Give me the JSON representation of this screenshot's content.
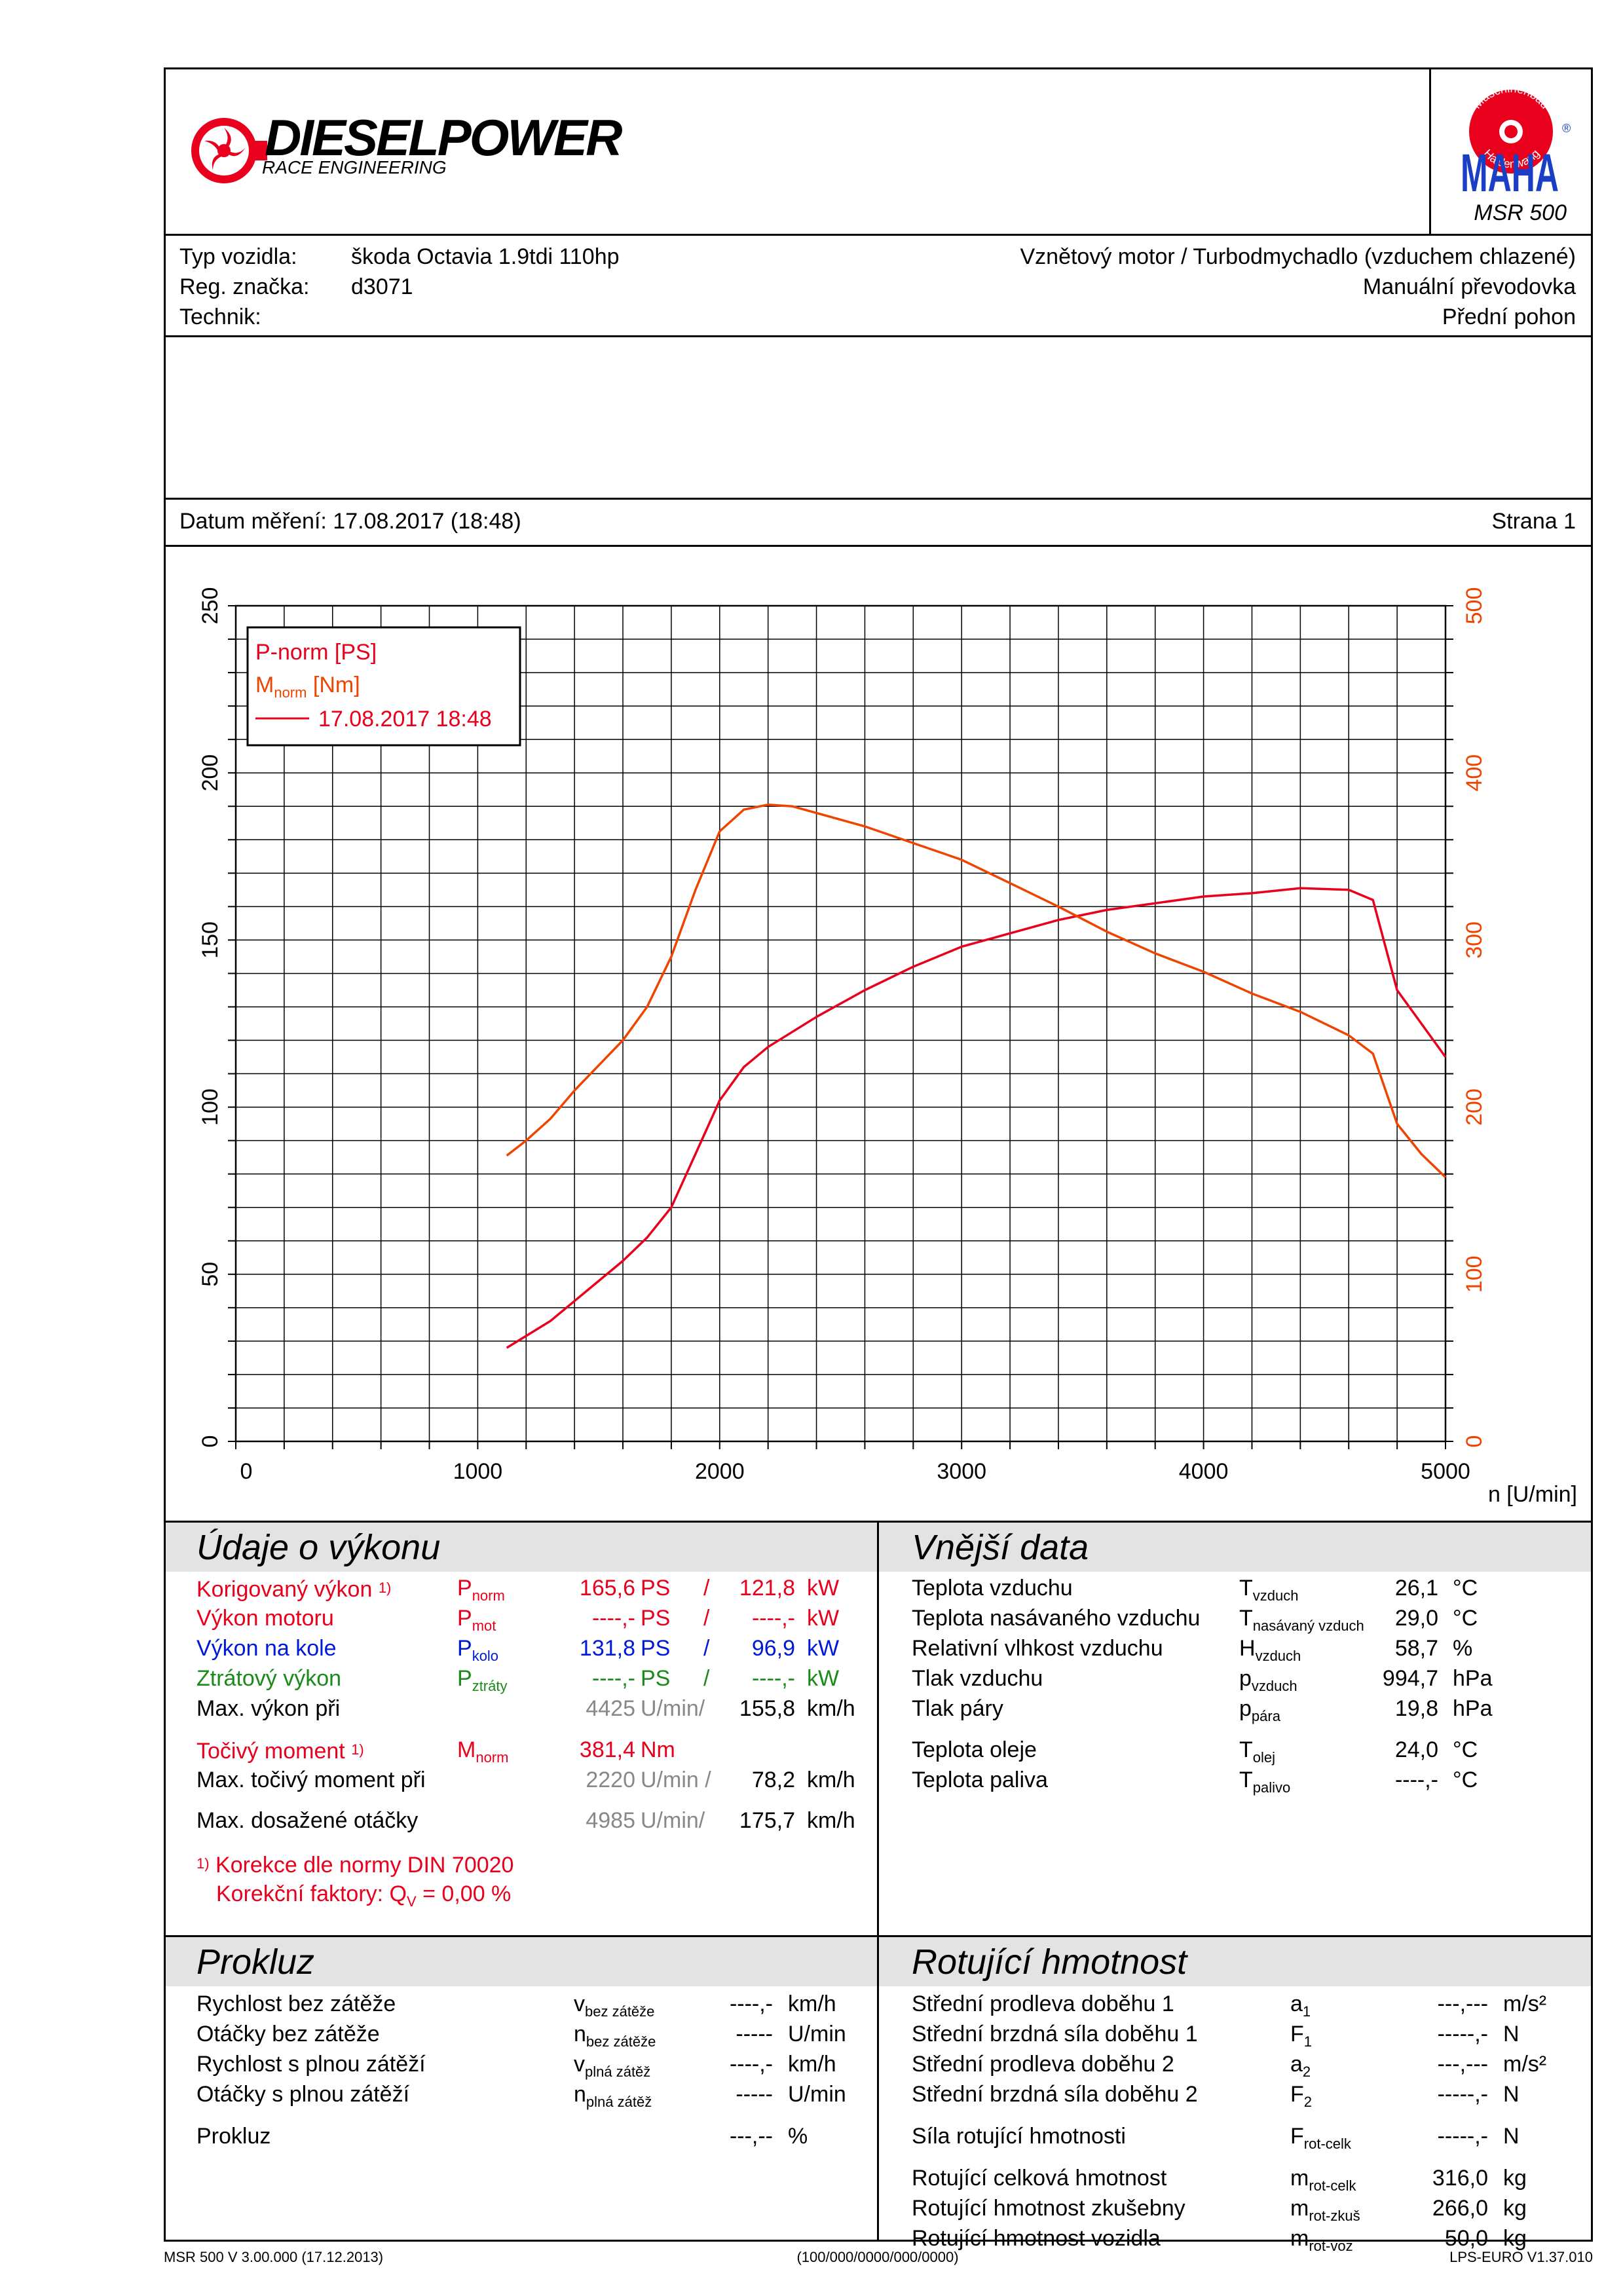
{
  "header": {
    "logo_main": "DIESELPOWER",
    "logo_sub": "RACE ENGINEERING",
    "maha_ring_top": "Maschinenbau",
    "maha_ring_bottom": "Haldenwang",
    "maha_word": "MAHA",
    "maha_reg": "®",
    "model": "MSR 500"
  },
  "vehicle": {
    "type_label": "Typ vozidla:",
    "type_value": "škoda Octavia 1.9tdi 110hp",
    "reg_label": "Reg. značka:",
    "reg_value": "d3071",
    "tech_label": "Technik:",
    "engine": "Vznětový motor / Turbodmychadlo (vzduchem chlazené)",
    "gearbox": "Manuální převodovka",
    "drive": "Přední pohon"
  },
  "measure": {
    "date_line": "Datum měření: 17.08.2017 (18:48)",
    "page": "Strana 1"
  },
  "chart_data": {
    "type": "line",
    "xlabel": "n [U/min]",
    "xlim": [
      0,
      5000
    ],
    "x_ticks": [
      "0",
      "1000",
      "2000",
      "3000",
      "4000",
      "5000"
    ],
    "y_left_lim": [
      0,
      250
    ],
    "y_left_ticks": [
      "0",
      "50",
      "100",
      "150",
      "200",
      "250"
    ],
    "y_right_lim": [
      0,
      500
    ],
    "y_right_ticks": [
      "0",
      "100",
      "200",
      "300",
      "400",
      "500"
    ],
    "grid": true,
    "legend": {
      "position": "top-left",
      "line1": "P-norm [PS]",
      "line2_main": "M",
      "line2_sub": "norm",
      "line2_unit": " [Nm]",
      "line3": "17.08.2017 18:48"
    },
    "series": [
      {
        "color": "#e8001c",
        "axis": "left",
        "x": [
          1120,
          1300,
          1500,
          1600,
          1700,
          1800,
          1900,
          2000,
          2100,
          2200,
          2400,
          2600,
          2800,
          3000,
          3200,
          3400,
          3600,
          3800,
          4000,
          4200,
          4400,
          4600,
          4700,
          4800,
          4900,
          5000
        ],
        "y": [
          28,
          36,
          48,
          54,
          61,
          70,
          86,
          102,
          112,
          118,
          127,
          135,
          142,
          148,
          152,
          156,
          159,
          161,
          163,
          164,
          165.5,
          165,
          162,
          135,
          125,
          115
        ]
      },
      {
        "color": "#ee4400",
        "axis": "right",
        "x": [
          1120,
          1200,
          1300,
          1400,
          1500,
          1600,
          1700,
          1800,
          1900,
          2000,
          2100,
          2200,
          2300,
          2400,
          2600,
          2800,
          3000,
          3200,
          3400,
          3600,
          3800,
          4000,
          4200,
          4400,
          4600,
          4700,
          4800,
          4900,
          5000
        ],
        "y": [
          171,
          180,
          193,
          210,
          225,
          240,
          260,
          290,
          330,
          365,
          378,
          381,
          380,
          376,
          368,
          358,
          348,
          334,
          320,
          305,
          292,
          281,
          268,
          257,
          243,
          232,
          190,
          172,
          158
        ]
      }
    ]
  },
  "perf": {
    "title": "Údaje o výkonu",
    "rows": [
      {
        "label": "Korigovaný výkon",
        "foot": "1)",
        "sym": "P",
        "sub": "norm",
        "v1": "165,6",
        "u1": "PS",
        "sep": "/",
        "v2": "121,8",
        "u2": "kW"
      },
      {
        "label": "Výkon motoru",
        "sym": "P",
        "sub": "mot",
        "v1": "----,-",
        "u1": "PS",
        "sep": "/",
        "v2": "----,-",
        "u2": "kW"
      },
      {
        "label": "Výkon na kole",
        "sym": "P",
        "sub": "kolo",
        "v1": "131,8",
        "u1": "PS",
        "sep": "/",
        "v2": "96,9",
        "u2": "kW"
      },
      {
        "label": "Ztrátový výkon",
        "sym": "P",
        "sub": "ztráty",
        "v1": "----,-",
        "u1": "PS",
        "sep": "/",
        "v2": "----,-",
        "u2": "kW"
      },
      {
        "label": "Max. výkon při",
        "v1": "4425",
        "u1": "U/min/",
        "v2": "155,8",
        "u2": "km/h"
      },
      {
        "label": "Točivý moment",
        "foot": "1)",
        "sym": "M",
        "sub": "norm",
        "v1": "381,4",
        "u1": "Nm"
      },
      {
        "label": "Max. točivý moment při",
        "v1": "2220",
        "u1": "U/min /",
        "v2": "78,2",
        "u2": "km/h"
      },
      {
        "label": "Max. dosažené otáčky",
        "v1": "4985",
        "u1": "U/min/",
        "v2": "175,7",
        "u2": "km/h"
      }
    ],
    "note_foot": "1)",
    "note1": "Korekce dle normy DIN 70020",
    "note2_pre": "Korekční faktory: Q",
    "note2_sub": "V",
    "note2_post": " =   0,00 %"
  },
  "ext": {
    "title": "Vnější data",
    "rows": [
      {
        "label": "Teplota vzduchu",
        "sym": "T",
        "sub": "vzduch",
        "val": "26,1",
        "unit": "°C"
      },
      {
        "label": "Teplota nasávaného vzduchu",
        "sym": "T",
        "sub": "nasávaný vzduch",
        "val": "29,0",
        "unit": "°C"
      },
      {
        "label": "Relativní vlhkost vzduchu",
        "sym": "H",
        "sub": "vzduch",
        "val": "58,7",
        "unit": "%"
      },
      {
        "label": "Tlak vzduchu",
        "sym": "p",
        "sub": "vzduch",
        "val": "994,7",
        "unit": "hPa"
      },
      {
        "label": "Tlak páry",
        "sym": "p",
        "sub": "pára",
        "val": "19,8",
        "unit": "hPa"
      },
      {
        "label": "Teplota oleje",
        "sym": "T",
        "sub": "olej",
        "val": "24,0",
        "unit": "°C"
      },
      {
        "label": "Teplota paliva",
        "sym": "T",
        "sub": "palivo",
        "val": "----,-",
        "unit": "°C"
      }
    ]
  },
  "slip": {
    "title": "Prokluz",
    "rows": [
      {
        "label": "Rychlost bez zátěže",
        "sym": "v",
        "sub": "bez zátěže",
        "val": "----,-",
        "unit": "km/h"
      },
      {
        "label": "Otáčky bez zátěže",
        "sym": "n",
        "sub": "bez zátěže",
        "val": "-----",
        "unit": "U/min"
      },
      {
        "label": "Rychlost s plnou zátěží",
        "sym": "v",
        "sub": "plná zátěž",
        "val": "----,-",
        "unit": "km/h"
      },
      {
        "label": "Otáčky s plnou zátěží",
        "sym": "n",
        "sub": "plná zátěž",
        "val": "-----",
        "unit": "U/min"
      },
      {
        "label": "Prokluz",
        "val": "---,--",
        "unit": "%"
      }
    ]
  },
  "rot": {
    "title": "Rotující hmotnost",
    "rows": [
      {
        "label": "Střední prodleva doběhu 1",
        "sym": "a",
        "sub": "1",
        "val": "---,---",
        "unit": "m/s²"
      },
      {
        "label": "Střední brzdná síla doběhu 1",
        "sym": "F",
        "sub": "1",
        "val": "-----,-",
        "unit": "N"
      },
      {
        "label": "Střední prodleva doběhu 2",
        "sym": "a",
        "sub": "2",
        "val": "---,---",
        "unit": "m/s²"
      },
      {
        "label": "Střední brzdná síla doběhu 2",
        "sym": "F",
        "sub": "2",
        "val": "-----,-",
        "unit": "N"
      },
      {
        "label": "Síla rotující hmotnosti",
        "sym": "F",
        "sub": "rot-celk",
        "val": "-----,-",
        "unit": "N"
      },
      {
        "label": "Rotující celková hmotnost",
        "sym": "m",
        "sub": "rot-celk",
        "val": "316,0",
        "unit": "kg"
      },
      {
        "label": "Rotující hmotnost zkušebny",
        "sym": "m",
        "sub": "rot-zkuš",
        "val": "266,0",
        "unit": "kg"
      },
      {
        "label": "Rotující hmotnost vozidla",
        "sym": "m",
        "sub": "rot-voz",
        "val": "50,0",
        "unit": "kg"
      }
    ]
  },
  "footer": {
    "left": "MSR 500 V 3.00.000 (17.12.2013)",
    "center": "(100/000/0000/000/0000)",
    "right": "LPS-EURO V1.37.010"
  }
}
